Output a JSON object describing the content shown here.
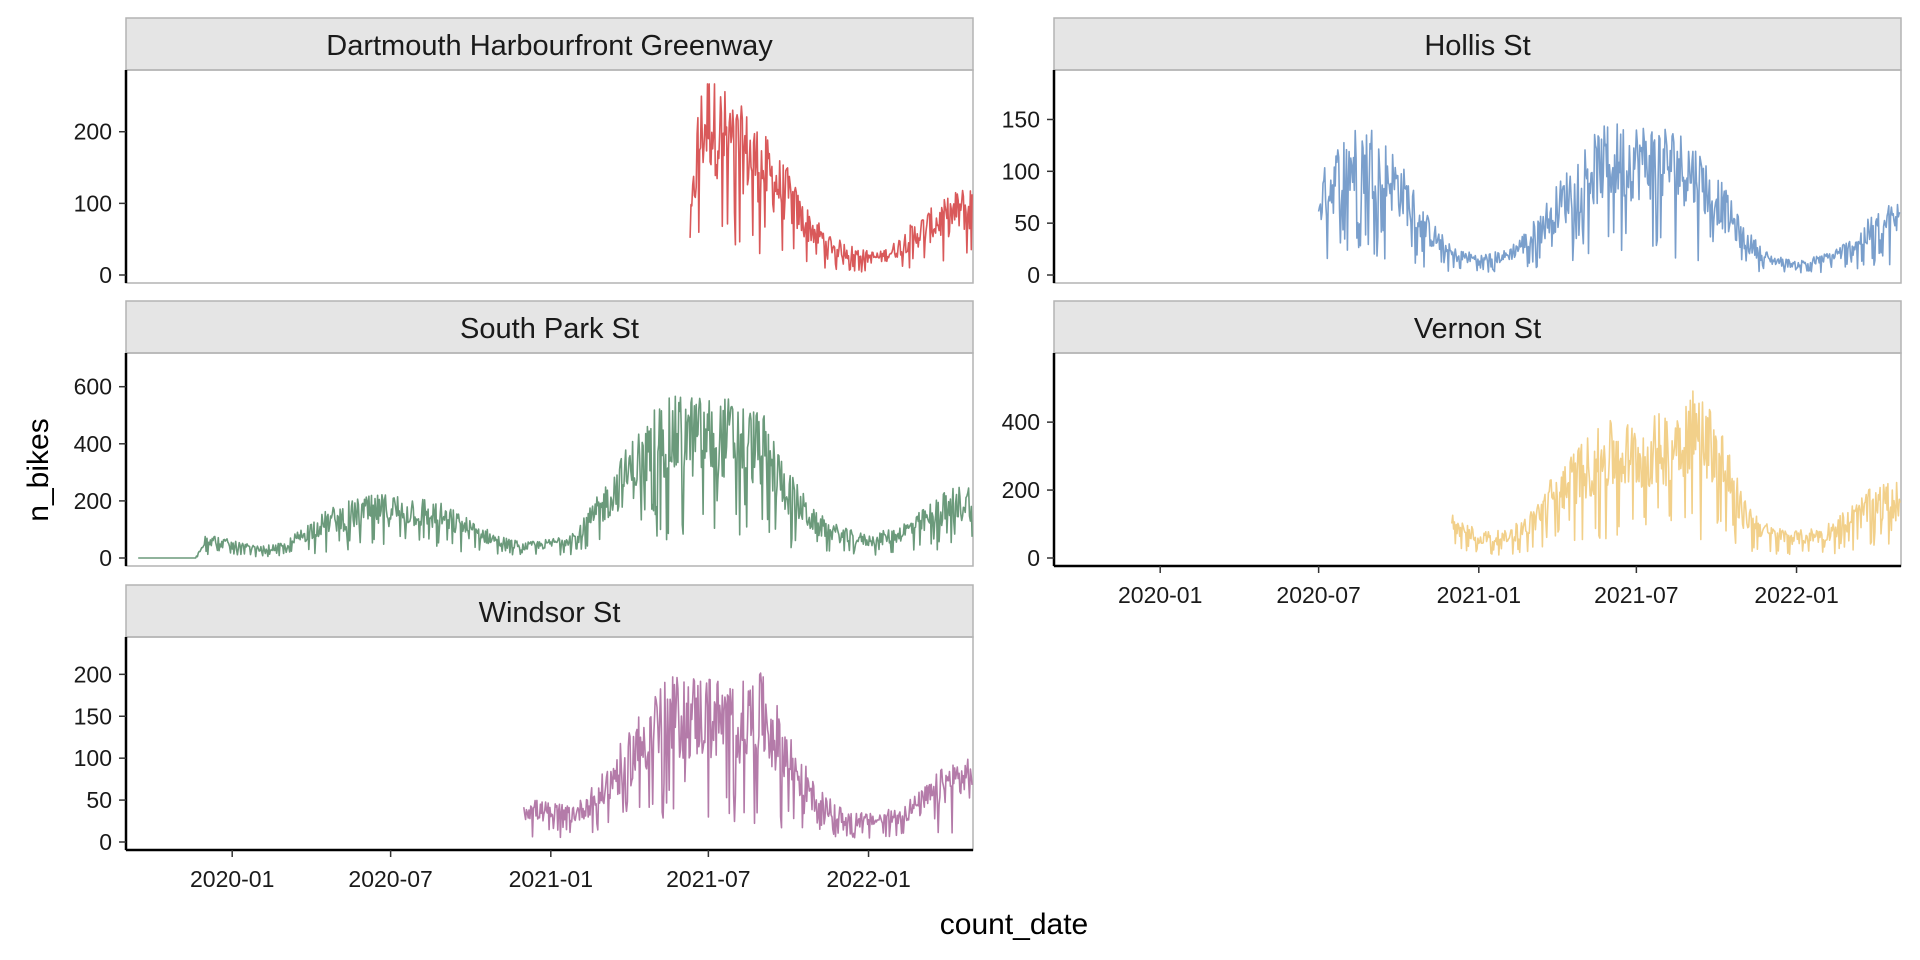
{
  "chart_data": {
    "type": "line",
    "layout": "facet-wrap",
    "xlabel": "count_date",
    "ylabel": "n_bikes",
    "xlim": [
      "2019-09-01",
      "2022-05-01"
    ],
    "x_ticks": [
      "2020-01",
      "2020-07",
      "2021-01",
      "2021-07",
      "2022-01"
    ],
    "grid": false,
    "legend": "none",
    "panels": [
      {
        "name": "Dartmouth Harbourfront Greenway",
        "color": "#D9595A",
        "ylim": [
          0,
          275
        ],
        "y_ticks": [
          0,
          100,
          200
        ],
        "range": [
          "2021-06-10",
          "2022-04-30"
        ],
        "points": [
          [
            "2021-06-10",
            60
          ],
          [
            "2021-06-20",
            190
          ],
          [
            "2021-07-01",
            220
          ],
          [
            "2021-07-15",
            200
          ],
          [
            "2021-08-01",
            180
          ],
          [
            "2021-08-15",
            170
          ],
          [
            "2021-09-01",
            150
          ],
          [
            "2021-09-15",
            130
          ],
          [
            "2021-10-01",
            110
          ],
          [
            "2021-10-15",
            80
          ],
          [
            "2021-11-01",
            60
          ],
          [
            "2021-11-15",
            45
          ],
          [
            "2021-12-01",
            35
          ],
          [
            "2021-12-15",
            30
          ],
          [
            "2022-01-01",
            25
          ],
          [
            "2022-01-15",
            25
          ],
          [
            "2022-02-01",
            35
          ],
          [
            "2022-02-15",
            50
          ],
          [
            "2022-03-01",
            60
          ],
          [
            "2022-03-15",
            70
          ],
          [
            "2022-04-01",
            80
          ],
          [
            "2022-04-15",
            90
          ],
          [
            "2022-04-30",
            95
          ]
        ]
      },
      {
        "name": "Hollis St",
        "color": "#7A9FCC",
        "ylim": [
          0,
          190
        ],
        "y_ticks": [
          0,
          50,
          100,
          150
        ],
        "range": [
          "2020-07-01",
          "2022-04-30"
        ],
        "points": [
          [
            "2020-07-01",
            70
          ],
          [
            "2020-08-01",
            105
          ],
          [
            "2020-09-01",
            110
          ],
          [
            "2020-10-01",
            85
          ],
          [
            "2020-11-01",
            45
          ],
          [
            "2020-12-01",
            20
          ],
          [
            "2021-01-01",
            15
          ],
          [
            "2021-02-01",
            18
          ],
          [
            "2021-03-01",
            35
          ],
          [
            "2021-04-01",
            65
          ],
          [
            "2021-05-01",
            95
          ],
          [
            "2021-06-01",
            110
          ],
          [
            "2021-07-01",
            110
          ],
          [
            "2021-08-01",
            110
          ],
          [
            "2021-09-01",
            100
          ],
          [
            "2021-10-01",
            75
          ],
          [
            "2021-11-01",
            35
          ],
          [
            "2021-12-01",
            15
          ],
          [
            "2022-01-01",
            10
          ],
          [
            "2022-02-01",
            15
          ],
          [
            "2022-03-01",
            25
          ],
          [
            "2022-04-01",
            45
          ],
          [
            "2022-04-30",
            55
          ]
        ]
      },
      {
        "name": "South Park St",
        "color": "#6B9A7B",
        "ylim": [
          0,
          690
        ],
        "y_ticks": [
          0,
          200,
          400,
          600
        ],
        "range": [
          "2019-09-15",
          "2022-04-30"
        ],
        "points": [
          [
            "2019-09-15",
            0
          ],
          [
            "2019-11-20",
            0
          ],
          [
            "2019-12-01",
            70
          ],
          [
            "2020-01-01",
            45
          ],
          [
            "2020-02-01",
            30
          ],
          [
            "2020-03-01",
            40
          ],
          [
            "2020-04-01",
            100
          ],
          [
            "2020-05-01",
            140
          ],
          [
            "2020-06-01",
            160
          ],
          [
            "2020-07-01",
            170
          ],
          [
            "2020-08-01",
            165
          ],
          [
            "2020-09-01",
            140
          ],
          [
            "2020-10-01",
            100
          ],
          [
            "2020-11-01",
            60
          ],
          [
            "2020-12-01",
            40
          ],
          [
            "2021-01-01",
            50
          ],
          [
            "2021-02-01",
            80
          ],
          [
            "2021-03-01",
            180
          ],
          [
            "2021-04-01",
            300
          ],
          [
            "2021-05-01",
            400
          ],
          [
            "2021-06-01",
            430
          ],
          [
            "2021-07-01",
            420
          ],
          [
            "2021-08-01",
            420
          ],
          [
            "2021-09-01",
            380
          ],
          [
            "2021-10-01",
            230
          ],
          [
            "2021-11-01",
            120
          ],
          [
            "2021-12-01",
            80
          ],
          [
            "2022-01-01",
            60
          ],
          [
            "2022-02-01",
            80
          ],
          [
            "2022-03-01",
            120
          ],
          [
            "2022-04-01",
            180
          ],
          [
            "2022-04-30",
            200
          ]
        ]
      },
      {
        "name": "Vernon St",
        "color": "#F2D08A",
        "ylim": [
          0,
          580
        ],
        "y_ticks": [
          0,
          200,
          400
        ],
        "range": [
          "2020-12-01",
          "2022-04-30"
        ],
        "points": [
          [
            "2020-12-01",
            100
          ],
          [
            "2021-01-01",
            60
          ],
          [
            "2021-02-01",
            60
          ],
          [
            "2021-03-01",
            100
          ],
          [
            "2021-04-01",
            200
          ],
          [
            "2021-05-01",
            260
          ],
          [
            "2021-06-01",
            300
          ],
          [
            "2021-07-01",
            300
          ],
          [
            "2021-08-01",
            320
          ],
          [
            "2021-09-01",
            380
          ],
          [
            "2021-10-01",
            330
          ],
          [
            "2021-11-01",
            130
          ],
          [
            "2021-12-01",
            70
          ],
          [
            "2022-01-01",
            60
          ],
          [
            "2022-02-01",
            70
          ],
          [
            "2022-03-01",
            110
          ],
          [
            "2022-04-01",
            160
          ],
          [
            "2022-04-30",
            170
          ]
        ]
      },
      {
        "name": "Windsor St",
        "color": "#B47BA9",
        "ylim": [
          0,
          235
        ],
        "y_ticks": [
          0,
          50,
          100,
          150,
          200
        ],
        "range": [
          "2020-12-01",
          "2022-04-30"
        ],
        "points": [
          [
            "2020-12-01",
            40
          ],
          [
            "2021-01-01",
            35
          ],
          [
            "2021-02-01",
            35
          ],
          [
            "2021-03-01",
            60
          ],
          [
            "2021-04-01",
            100
          ],
          [
            "2021-05-01",
            140
          ],
          [
            "2021-06-01",
            150
          ],
          [
            "2021-07-01",
            150
          ],
          [
            "2021-08-01",
            140
          ],
          [
            "2021-09-01",
            150
          ],
          [
            "2021-10-01",
            100
          ],
          [
            "2021-11-01",
            50
          ],
          [
            "2021-12-01",
            30
          ],
          [
            "2022-01-01",
            25
          ],
          [
            "2022-02-01",
            30
          ],
          [
            "2022-03-01",
            45
          ],
          [
            "2022-04-01",
            70
          ],
          [
            "2022-04-30",
            80
          ]
        ]
      }
    ]
  }
}
